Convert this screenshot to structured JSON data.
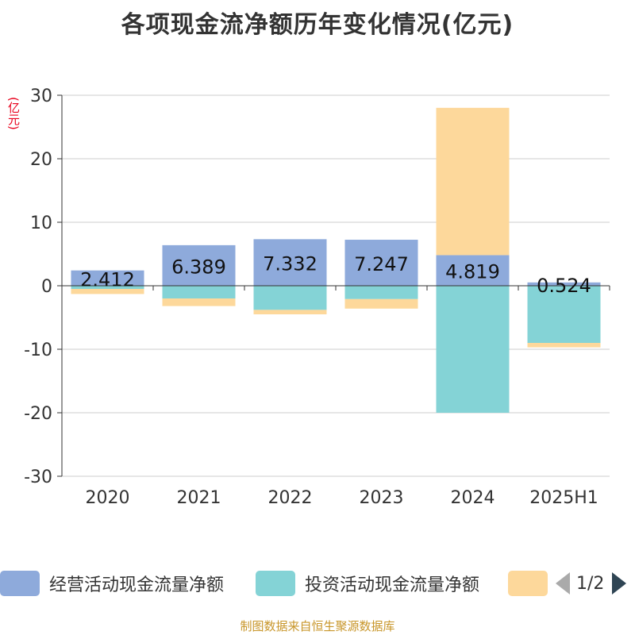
{
  "title": "各项现金流净额历年变化情况(亿元)",
  "unit_label": "(亿元)",
  "source_text": "制图数据来自恒生聚源数据库",
  "legend": {
    "items": [
      {
        "label": "经营活动现金流量净额",
        "color": "#8eaadb"
      },
      {
        "label": "投资活动现金流量净额",
        "color": "#84d3d6"
      },
      {
        "label": "",
        "color": "#fdd89b"
      }
    ],
    "page": "1/2"
  },
  "chart_data": {
    "type": "bar",
    "stacked": true,
    "categories": [
      "2020",
      "2021",
      "2022",
      "2023",
      "2024",
      "2025H1"
    ],
    "ylim": [
      -30,
      30
    ],
    "yticks": [
      30,
      20,
      10,
      0,
      -10,
      -20,
      -30
    ],
    "grid": true,
    "legend_position": "bottom",
    "series": [
      {
        "name": "经营活动现金流量净额",
        "color": "#8eaadb",
        "values": [
          2.412,
          6.389,
          7.332,
          7.247,
          4.819,
          0.524
        ]
      },
      {
        "name": "投资活动现金流量净额",
        "color": "#84d3d6",
        "values": [
          -0.5,
          -2.0,
          -3.8,
          -2.1,
          -20.0,
          -9.0
        ]
      },
      {
        "color": "#fdd89b",
        "values": [
          -0.8,
          -1.2,
          -0.7,
          -1.5,
          23.2,
          -0.7
        ]
      }
    ],
    "data_labels": [
      "2.412",
      "6.389",
      "7.332",
      "7.247",
      "4.819",
      "0.524"
    ]
  }
}
